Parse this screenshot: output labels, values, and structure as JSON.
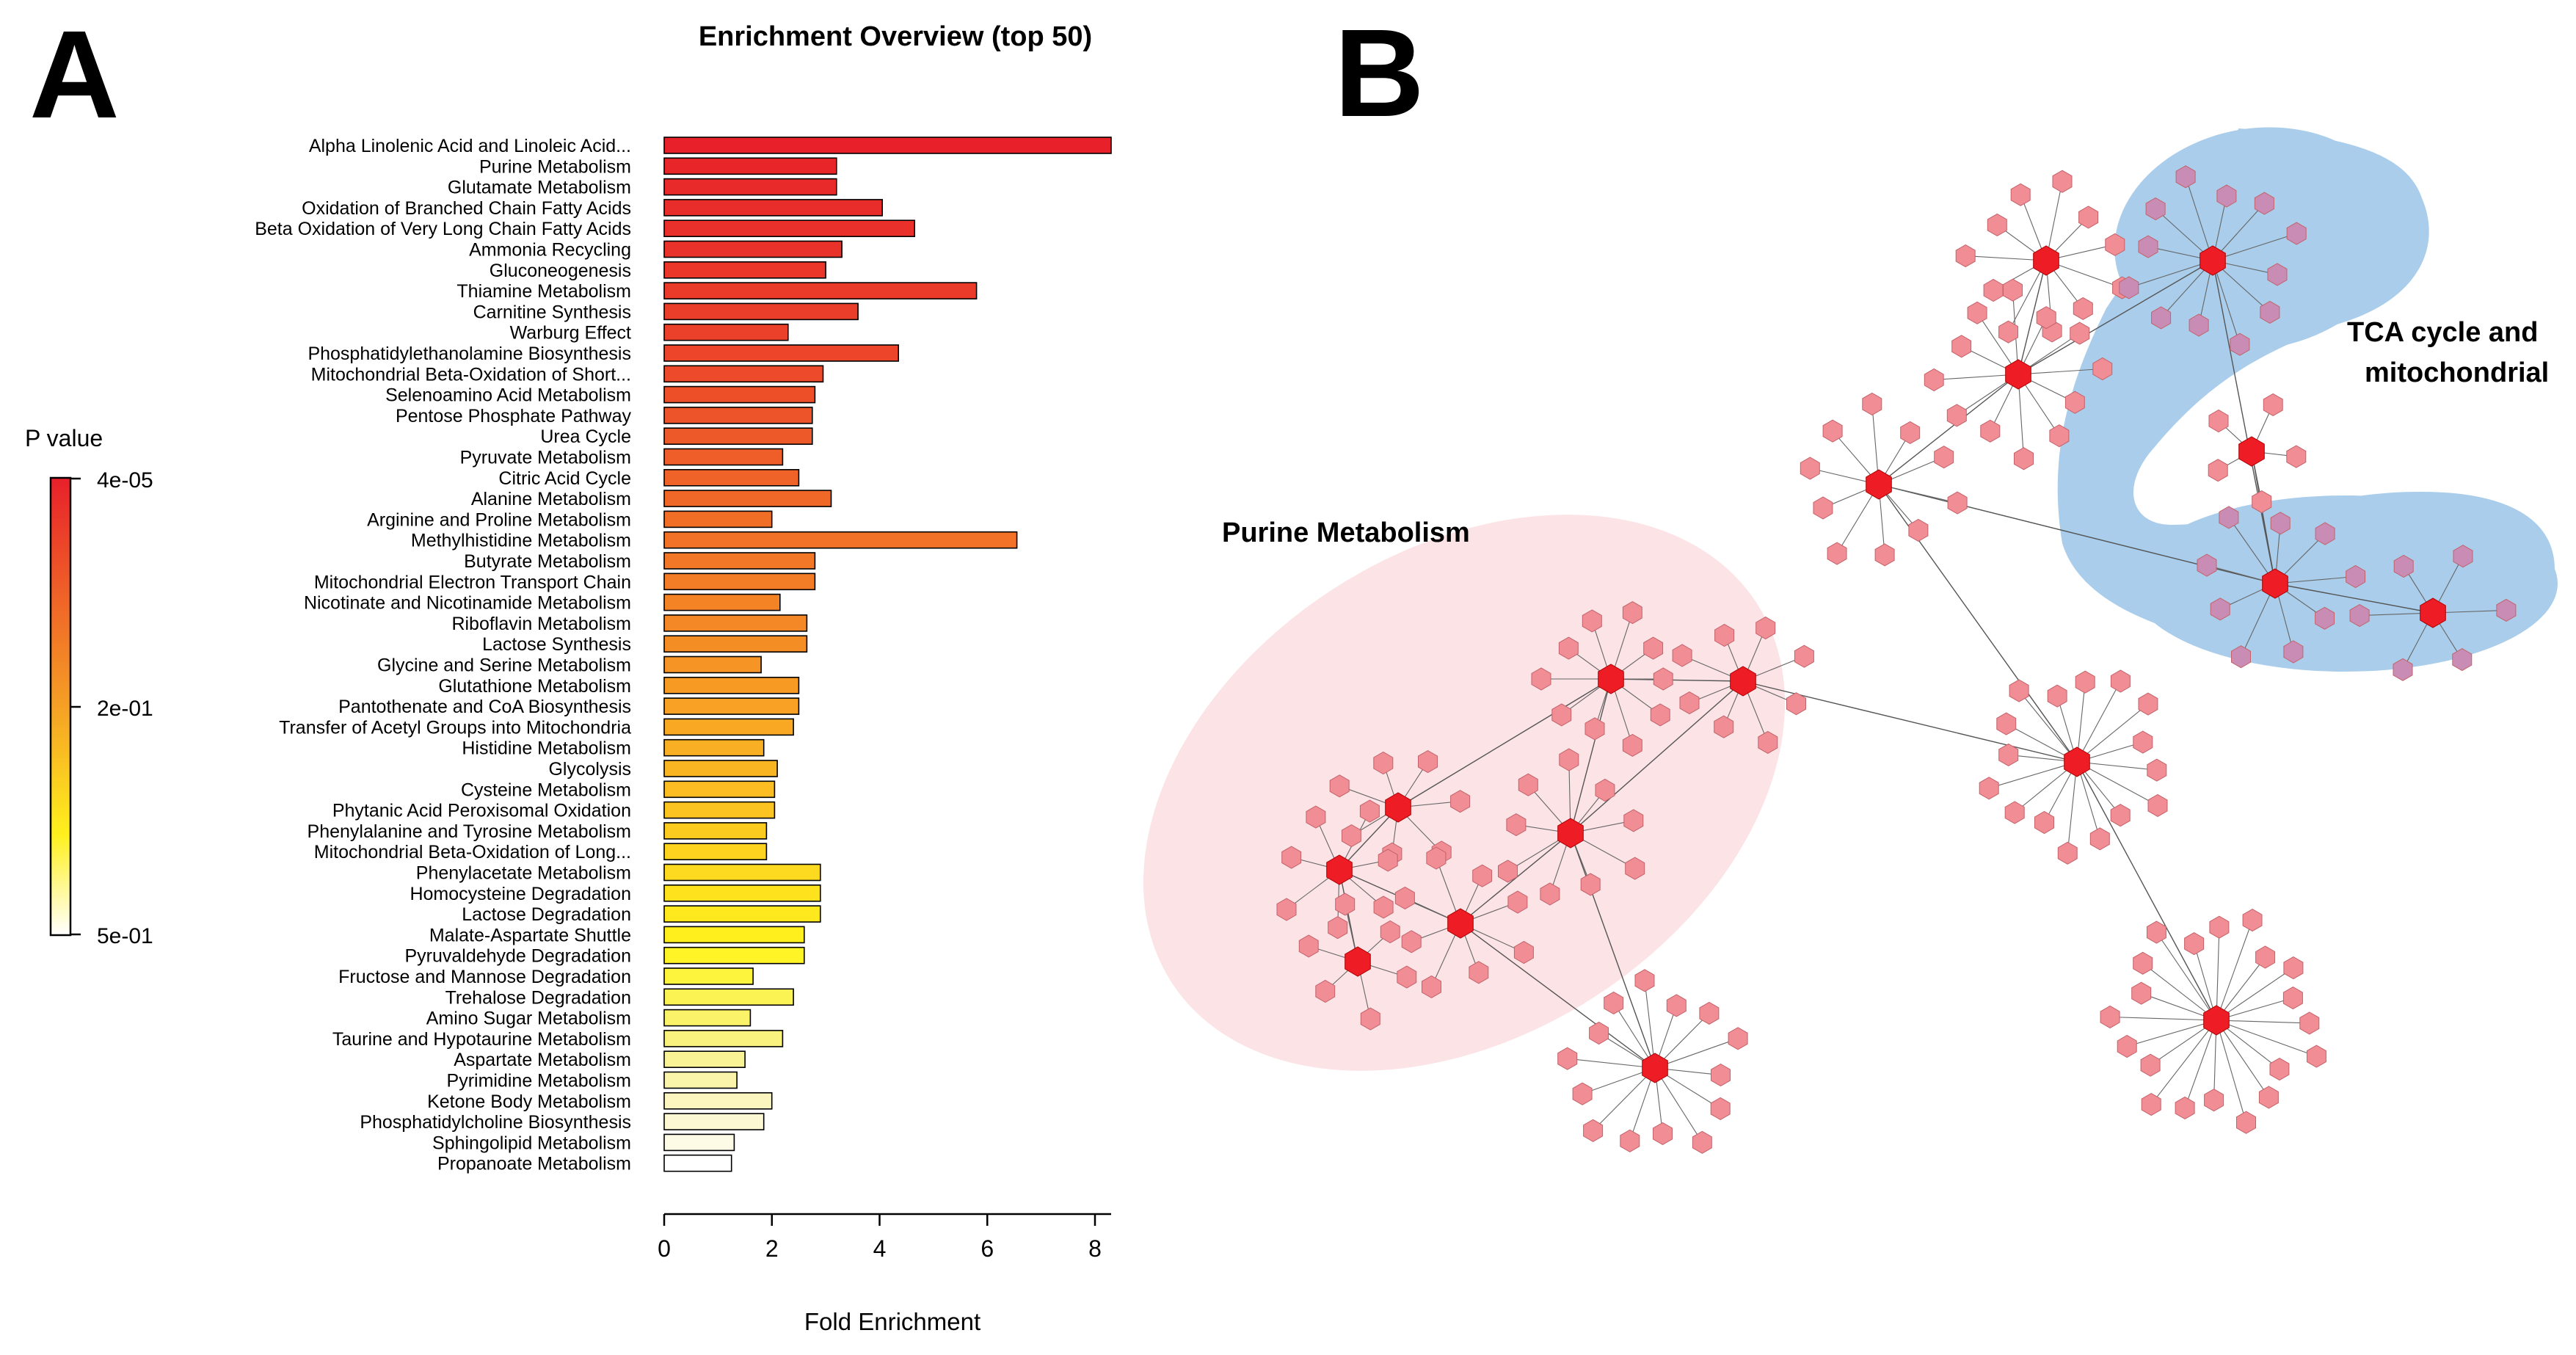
{
  "panel_a": {
    "letter": "A",
    "legend_title": "P value",
    "legend_ticks": [
      "4e-05",
      "2e-01",
      "5e-01"
    ]
  },
  "panel_b": {
    "letter": "B",
    "region_purine": "Purine Metabolism",
    "region_tca_line1": "TCA cycle and",
    "region_tca_line2": "mitochondrial",
    "colors": {
      "purine_region": "#fbe3e6",
      "tca_region": "#a9cdea",
      "node": "#f08d95",
      "hub": "#ee1c25",
      "tca_node": "#c98db5"
    }
  },
  "chart_data": {
    "type": "bar",
    "orientation": "horizontal",
    "title": "Enrichment Overview (top 50)",
    "xlabel": "Fold Enrichment",
    "ylabel": "",
    "xlim": [
      0,
      8.3
    ],
    "xticks": [
      0,
      2,
      4,
      6,
      8
    ],
    "grid": false,
    "categories": [
      "Alpha Linolenic Acid and Linoleic Acid...",
      "Purine Metabolism",
      "Glutamate Metabolism",
      "Oxidation of Branched Chain Fatty Acids",
      "Beta Oxidation of Very Long Chain Fatty Acids",
      "Ammonia Recycling",
      "Gluconeogenesis",
      "Thiamine Metabolism",
      "Carnitine Synthesis",
      "Warburg Effect",
      "Phosphatidylethanolamine Biosynthesis",
      "Mitochondrial Beta-Oxidation of Short...",
      "Selenoamino Acid Metabolism",
      "Pentose Phosphate Pathway",
      "Urea Cycle",
      "Pyruvate Metabolism",
      "Citric Acid Cycle",
      "Alanine Metabolism",
      "Arginine and Proline Metabolism",
      "Methylhistidine Metabolism",
      "Butyrate Metabolism",
      "Mitochondrial Electron Transport Chain",
      "Nicotinate and Nicotinamide Metabolism",
      "Riboflavin Metabolism",
      "Lactose Synthesis",
      "Glycine and Serine Metabolism",
      "Glutathione Metabolism",
      "Pantothenate and CoA Biosynthesis",
      "Transfer of Acetyl Groups into Mitochondria",
      "Histidine Metabolism",
      "Glycolysis",
      "Cysteine Metabolism",
      "Phytanic Acid Peroxisomal Oxidation",
      "Phenylalanine and Tyrosine Metabolism",
      "Mitochondrial Beta-Oxidation of Long...",
      "Phenylacetate Metabolism",
      "Homocysteine Degradation",
      "Lactose Degradation",
      "Malate-Aspartate Shuttle",
      "Pyruvaldehyde Degradation",
      "Fructose and Mannose Degradation",
      "Trehalose Degradation",
      "Amino Sugar Metabolism",
      "Taurine and Hypotaurine Metabolism",
      "Aspartate Metabolism",
      "Pyrimidine Metabolism",
      "Ketone Body Metabolism",
      "Phosphatidylcholine Biosynthesis",
      "Sphingolipid Metabolism",
      "Propanoate Metabolism"
    ],
    "values": [
      8.3,
      3.2,
      3.2,
      4.05,
      4.65,
      3.3,
      3.0,
      5.8,
      3.6,
      2.3,
      4.35,
      2.95,
      2.8,
      2.75,
      2.75,
      2.2,
      2.5,
      3.1,
      2.0,
      6.55,
      2.8,
      2.8,
      2.15,
      2.65,
      2.65,
      1.8,
      2.5,
      2.5,
      2.4,
      1.85,
      2.1,
      2.05,
      2.05,
      1.9,
      1.9,
      2.9,
      2.9,
      2.9,
      2.6,
      2.6,
      1.65,
      2.4,
      1.6,
      2.2,
      1.5,
      1.35,
      2.0,
      1.85,
      1.3,
      1.25
    ],
    "fill_colors": [
      "#e8202a",
      "#e8262a",
      "#e82a2a",
      "#e82d2a",
      "#e9302a",
      "#e9332a",
      "#ea372a",
      "#ea3a2a",
      "#eb3e2a",
      "#eb412a",
      "#ec452a",
      "#ec4a2a",
      "#ed4f29",
      "#ed5429",
      "#ee5929",
      "#ef5e28",
      "#ef6328",
      "#f06828",
      "#f16e27",
      "#f27327",
      "#f27827",
      "#f37d26",
      "#f48326",
      "#f58826",
      "#f58d25",
      "#f69425",
      "#f79a24",
      "#f8a124",
      "#f9a823",
      "#f9af23",
      "#fab622",
      "#fbbd21",
      "#fcc421",
      "#fccb20",
      "#fdd31f",
      "#fdda1f",
      "#fee21e",
      "#fee91e",
      "#fff01d",
      "#fff526",
      "#fdf53d",
      "#fbf354",
      "#faf36a",
      "#f9f27f",
      "#f9f395",
      "#faf4ab",
      "#fbf6c0",
      "#fcf8d4",
      "#fdfae6",
      "#ffffff"
    ]
  }
}
